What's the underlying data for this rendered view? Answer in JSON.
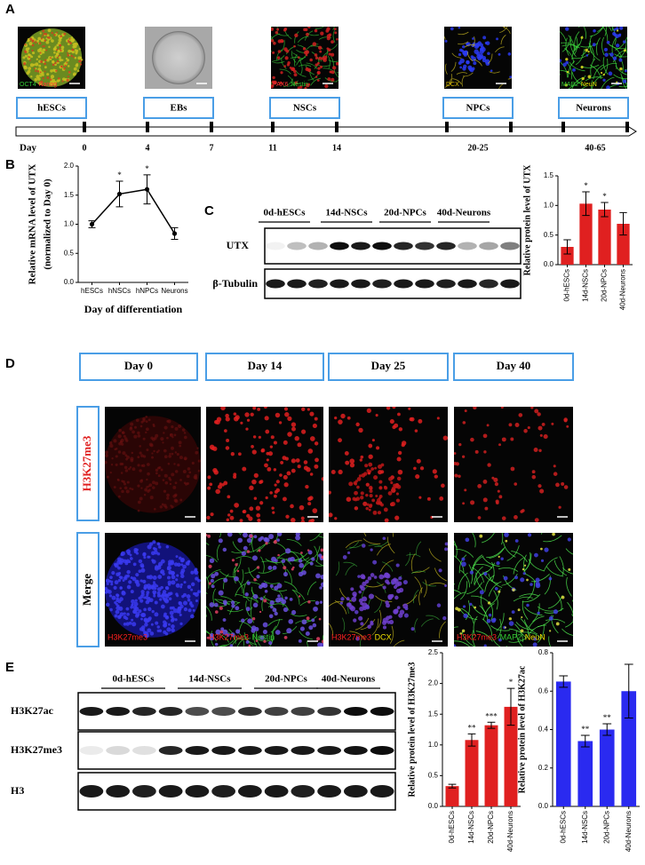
{
  "panels": {
    "A": {
      "letter": "A",
      "images": [
        {
          "labels": [
            {
              "text": "OCT4",
              "color": "#33cc33"
            },
            {
              "text": "Nanog",
              "color": "#ff3333"
            }
          ]
        },
        {
          "labels": []
        },
        {
          "labels": [
            {
              "text": "PAX6",
              "color": "#ff3333"
            },
            {
              "text": "Nestin",
              "color": "#33cc33"
            }
          ]
        },
        {
          "labels": [
            {
              "text": "DCX",
              "color": "#e0c000"
            }
          ]
        },
        {
          "labels": [
            {
              "text": "MAP2",
              "color": "#33cc33"
            },
            {
              "text": "NeuN",
              "color": "#e8e800"
            }
          ]
        }
      ],
      "stages": [
        "hESCs",
        "EBs",
        "NSCs",
        "NPCs",
        "Neurons"
      ],
      "timeline_label": "Day",
      "days": [
        "0",
        "4",
        "7",
        "11",
        "14",
        "20-25",
        "40-65"
      ]
    },
    "B": {
      "letter": "B"
    },
    "C": {
      "letter": "C",
      "groups": [
        "0d-hESCs",
        "14d-NSCs",
        "20d-NPCs",
        "40d-Neurons"
      ],
      "rows": [
        "UTX",
        "β-Tubulin"
      ]
    },
    "D": {
      "letter": "D",
      "columns": [
        "Day 0",
        "Day 14",
        "Day 25",
        "Day 40"
      ],
      "rows": [
        "H3K27me3",
        "Merge"
      ],
      "merge_labels": [
        [
          {
            "text": "H3K27me3",
            "color": "#ff2020"
          }
        ],
        [
          {
            "text": "H3K27me3",
            "color": "#ff2020"
          },
          {
            "text": "Nestin",
            "color": "#33cc33"
          }
        ],
        [
          {
            "text": "H3K27me3",
            "color": "#ff2020"
          },
          {
            "text": "DCX",
            "color": "#f0e000"
          }
        ],
        [
          {
            "text": "H3K27me3",
            "color": "#ff2020"
          },
          {
            "text": "MAP2",
            "color": "#33cc33"
          },
          {
            "text": "NeuN",
            "color": "#f0e000"
          }
        ]
      ]
    },
    "E": {
      "letter": "E",
      "groups": [
        "0d-hESCs",
        "14d-NSCs",
        "20d-NPCs",
        "40d-Neurons"
      ],
      "rows": [
        "H3K27ac",
        "H3K27me3",
        "H3"
      ]
    }
  },
  "chart_data": [
    {
      "type": "line",
      "ylabel": [
        "Relative mRNA level of UTX",
        "(normalized to Day 0)"
      ],
      "xlabel": "Day of differentiation",
      "categories": [
        "hESCs",
        "hNSCs",
        "hNPCs",
        "Neurons"
      ],
      "values": [
        1.0,
        1.52,
        1.6,
        0.84
      ],
      "errors": [
        0.06,
        0.22,
        0.25,
        0.1
      ],
      "significance": [
        null,
        "*",
        "*",
        null
      ],
      "color": "#000000",
      "ylim": [
        0,
        2.0
      ],
      "yticks": [
        {
          "value": 0,
          "label": "0.0"
        },
        0.5,
        {
          "value": 1,
          "label": "1.0"
        },
        1.5,
        {
          "value": 2,
          "label": "2.0"
        }
      ]
    },
    {
      "type": "bar",
      "ylabel": [
        "Relative protein level of UTX"
      ],
      "categories": [
        "0d-hESCs",
        "14d-NSCs",
        "20d-NPCs",
        "40d-Neurons"
      ],
      "values": [
        0.3,
        1.03,
        0.93,
        0.69
      ],
      "errors": [
        0.12,
        0.2,
        0.12,
        0.19
      ],
      "significance": [
        null,
        "*",
        "*",
        null
      ],
      "color": "#e02020",
      "ylim": [
        0,
        1.5
      ],
      "yticks": [
        {
          "value": 0,
          "label": "0.0"
        },
        0.5,
        {
          "value": 1,
          "label": "1.0"
        },
        1.5
      ]
    },
    {
      "type": "bar",
      "ylabel": [
        "Relative protein level of H3K27me3"
      ],
      "categories": [
        "0d-hESCs",
        "14d-NSCs",
        "20d-NPCs",
        "40d-Neurons"
      ],
      "values": [
        0.33,
        1.08,
        1.32,
        1.62
      ],
      "errors": [
        0.03,
        0.1,
        0.05,
        0.3
      ],
      "significance": [
        null,
        "**",
        "***",
        "*"
      ],
      "color": "#e02020",
      "ylim": [
        0,
        2.5
      ],
      "yticks": [
        {
          "value": 0,
          "label": "0.0"
        },
        0.5,
        {
          "value": 1,
          "label": "1.0"
        },
        1.5,
        {
          "value": 2,
          "label": "2.0"
        },
        2.5
      ]
    },
    {
      "type": "bar",
      "ylabel": [
        "Relative protein level of H3K27ac"
      ],
      "categories": [
        "0d-hESCs",
        "14d-NSCs",
        "20d-NPCs",
        "40d-Neurons"
      ],
      "values": [
        0.65,
        0.34,
        0.4,
        0.6
      ],
      "errors": [
        0.03,
        0.03,
        0.03,
        0.14
      ],
      "significance": [
        null,
        "**",
        "**",
        null
      ],
      "color": "#2a2af0",
      "ylim": [
        0,
        0.8
      ],
      "yticks": [
        {
          "value": 0,
          "label": "0.0"
        },
        0.2,
        0.4,
        0.6,
        0.8
      ]
    }
  ]
}
